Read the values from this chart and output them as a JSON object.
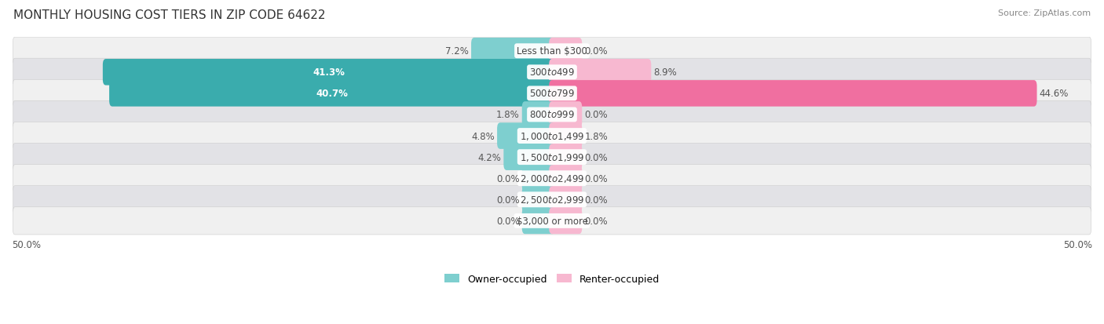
{
  "title": "Monthly Housing Cost Tiers in Zip Code 64622",
  "source": "Source: ZipAtlas.com",
  "categories": [
    "Less than $300",
    "$300 to $499",
    "$500 to $799",
    "$800 to $999",
    "$1,000 to $1,499",
    "$1,500 to $1,999",
    "$2,000 to $2,499",
    "$2,500 to $2,999",
    "$3,000 or more"
  ],
  "owner_values": [
    7.2,
    41.3,
    40.7,
    1.8,
    4.8,
    4.2,
    0.0,
    0.0,
    0.0
  ],
  "renter_values": [
    0.0,
    8.9,
    44.6,
    0.0,
    1.8,
    0.0,
    0.0,
    0.0,
    0.0
  ],
  "owner_color_dark": "#3aacad",
  "owner_color_light": "#7ecfcf",
  "renter_color_dark": "#f06fa0",
  "renter_color_light": "#f7b8d0",
  "row_bg_odd": "#f0f0f0",
  "row_bg_even": "#e2e2e6",
  "axis_limit": 50.0,
  "bar_stub_min": 2.5,
  "title_fontsize": 11,
  "label_fontsize": 8.5,
  "category_fontsize": 8.5,
  "legend_fontsize": 9,
  "source_fontsize": 8
}
